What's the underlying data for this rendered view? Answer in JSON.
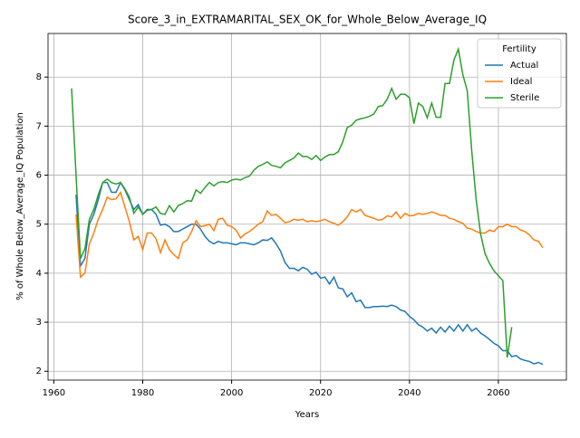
{
  "chart_data": {
    "type": "line",
    "title": "Score_3_in_EXTRAMARITAL_SEX_OK_for_Whole_Below_Average_IQ",
    "xlabel": "Years",
    "ylabel": "% of Whole Below_Average_IQ Population",
    "x": [
      1964,
      1965,
      1966,
      1967,
      1968,
      1969,
      1970,
      1971,
      1972,
      1973,
      1974,
      1975,
      1976,
      1977,
      1978,
      1979,
      1980,
      1981,
      1982,
      1983,
      1984,
      1985,
      1986,
      1987,
      1988,
      1989,
      1990,
      1991,
      1992,
      1993,
      1994,
      1995,
      1996,
      1997,
      1998,
      1999,
      2000,
      2001,
      2002,
      2003,
      2004,
      2005,
      2006,
      2007,
      2008,
      2009,
      2010,
      2011,
      2012,
      2013,
      2014,
      2015,
      2016,
      2017,
      2018,
      2019,
      2020,
      2021,
      2022,
      2023,
      2024,
      2025,
      2026,
      2027,
      2028,
      2029,
      2030,
      2031,
      2032,
      2033,
      2034,
      2035,
      2036,
      2037,
      2038,
      2039,
      2040,
      2041,
      2042,
      2043,
      2044,
      2045,
      2046,
      2047,
      2048,
      2049,
      2050,
      2051,
      2052,
      2053,
      2054,
      2055,
      2056,
      2057,
      2058,
      2059,
      2060,
      2061,
      2062,
      2063,
      2064,
      2065,
      2066,
      2067,
      2068,
      2069,
      2070
    ],
    "series": [
      {
        "name": "Actual",
        "color": "#1f77b4",
        "values": [
          null,
          5.6,
          4.15,
          4.3,
          5.0,
          5.2,
          5.5,
          5.85,
          5.85,
          5.65,
          5.65,
          5.85,
          5.7,
          5.5,
          5.3,
          5.4,
          5.2,
          5.3,
          5.3,
          5.2,
          4.98,
          5.0,
          4.95,
          4.85,
          4.85,
          4.9,
          4.95,
          5.0,
          5.0,
          4.9,
          4.75,
          4.65,
          4.6,
          4.65,
          4.62,
          4.62,
          4.6,
          4.58,
          4.62,
          4.62,
          4.6,
          4.58,
          4.62,
          4.68,
          4.67,
          4.72,
          4.6,
          4.45,
          4.22,
          4.1,
          4.1,
          4.05,
          4.12,
          4.08,
          3.98,
          4.02,
          3.9,
          3.92,
          3.78,
          3.92,
          3.7,
          3.68,
          3.52,
          3.6,
          3.42,
          3.45,
          3.3,
          3.3,
          3.32,
          3.32,
          3.33,
          3.32,
          3.35,
          3.32,
          3.25,
          3.22,
          3.12,
          3.05,
          2.95,
          2.9,
          2.82,
          2.88,
          2.78,
          2.9,
          2.8,
          2.92,
          2.82,
          2.95,
          2.82,
          2.95,
          2.82,
          2.88,
          2.78,
          2.72,
          2.65,
          2.57,
          2.52,
          2.42,
          2.42,
          2.3,
          2.32,
          2.25,
          2.22,
          2.2,
          2.15,
          2.18,
          2.14
        ]
      },
      {
        "name": "Ideal",
        "color": "#ff7f0e",
        "values": [
          null,
          5.2,
          3.92,
          4.0,
          4.6,
          4.82,
          5.1,
          5.3,
          5.55,
          5.5,
          5.52,
          5.65,
          5.35,
          5.05,
          4.68,
          4.75,
          4.48,
          4.82,
          4.82,
          4.7,
          4.42,
          4.68,
          4.48,
          4.38,
          4.3,
          4.62,
          4.68,
          4.85,
          5.07,
          4.95,
          4.97,
          5.0,
          4.87,
          5.1,
          5.12,
          4.98,
          4.95,
          4.88,
          4.72,
          4.8,
          4.85,
          4.92,
          5.0,
          5.05,
          5.27,
          5.18,
          5.2,
          5.12,
          5.03,
          5.05,
          5.1,
          5.08,
          5.1,
          5.05,
          5.07,
          5.05,
          5.07,
          5.1,
          5.05,
          5.02,
          4.98,
          5.05,
          5.15,
          5.3,
          5.25,
          5.3,
          5.18,
          5.15,
          5.12,
          5.08,
          5.1,
          5.17,
          5.15,
          5.25,
          5.12,
          5.22,
          5.17,
          5.18,
          5.22,
          5.2,
          5.22,
          5.25,
          5.22,
          5.18,
          5.18,
          5.12,
          5.1,
          5.05,
          5.02,
          4.92,
          4.9,
          4.85,
          4.82,
          4.82,
          4.88,
          4.85,
          4.95,
          4.95,
          5.0,
          4.95,
          4.95,
          4.88,
          4.85,
          4.78,
          4.68,
          4.65,
          4.52
        ]
      },
      {
        "name": "Sterile",
        "color": "#2ca02c",
        "values": [
          7.77,
          6.0,
          4.3,
          4.5,
          5.1,
          5.3,
          5.6,
          5.85,
          5.92,
          5.85,
          5.82,
          5.85,
          5.72,
          5.55,
          5.22,
          5.35,
          5.2,
          5.28,
          5.3,
          5.35,
          5.22,
          5.2,
          5.38,
          5.25,
          5.38,
          5.42,
          5.48,
          5.47,
          5.7,
          5.63,
          5.75,
          5.85,
          5.78,
          5.85,
          5.87,
          5.85,
          5.9,
          5.92,
          5.9,
          5.95,
          5.98,
          6.1,
          6.18,
          6.22,
          6.27,
          6.2,
          6.18,
          6.15,
          6.25,
          6.3,
          6.35,
          6.45,
          6.38,
          6.38,
          6.32,
          6.4,
          6.3,
          6.37,
          6.42,
          6.42,
          6.48,
          6.68,
          6.97,
          7.02,
          7.12,
          7.15,
          7.17,
          7.2,
          7.25,
          7.4,
          7.42,
          7.55,
          7.77,
          7.55,
          7.65,
          7.65,
          7.58,
          7.05,
          7.47,
          7.4,
          7.17,
          7.47,
          7.18,
          7.18,
          7.87,
          7.87,
          8.35,
          8.57,
          8.05,
          7.72,
          6.5,
          5.5,
          4.8,
          4.4,
          4.2,
          4.05,
          3.95,
          3.85,
          2.28,
          2.9,
          null,
          null,
          null,
          null,
          null,
          null,
          null
        ]
      }
    ],
    "xlim": [
      1958.7,
      2075.3
    ],
    "xticks": [
      1960,
      1980,
      2000,
      2020,
      2040,
      2060
    ],
    "ylim": [
      1.82,
      8.89
    ],
    "yticks": [
      2,
      3,
      4,
      5,
      6,
      7,
      8
    ],
    "grid": true,
    "legend_title": "Fertility",
    "legend_loc": "upper right"
  }
}
